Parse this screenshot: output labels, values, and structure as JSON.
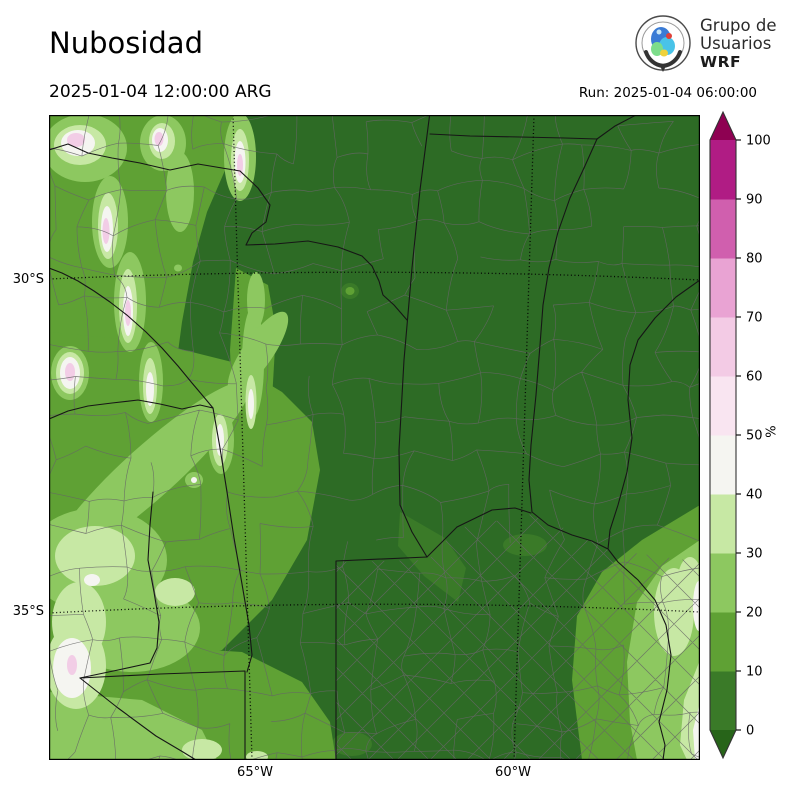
{
  "header": {
    "title": "Nubosidad",
    "valid_time": "2025-01-04 12:00:00 ARG",
    "run_label": "Run: 2025-01-04 06:00:00",
    "logo": {
      "line1": "Grupo de",
      "line2": "Usuarios",
      "line3": "WRF"
    }
  },
  "chart_data": {
    "type": "heatmap",
    "title": "Nubosidad",
    "valid_time": "2025-01-04 12:00:00 ARG",
    "run_time": "2025-01-04 06:00:00",
    "units": "%",
    "x_tick_labels": [
      "65°W",
      "60°W"
    ],
    "y_tick_labels": [
      "30°S",
      "35°S"
    ],
    "colorbar": {
      "label": "%",
      "tick_values": [
        0,
        10,
        20,
        30,
        40,
        50,
        60,
        70,
        80,
        90,
        100
      ],
      "bin_colors": [
        "#3a7a28",
        "#5fa134",
        "#8dc860",
        "#c7e8a4",
        "#f5f5f1",
        "#f9e5f1",
        "#f3cbe5",
        "#e9a3d3",
        "#d05fae",
        "#b01c84"
      ],
      "under_color": "#276419",
      "over_color": "#8e0152",
      "extend": "both",
      "legend_position": "right"
    },
    "map_colors": {
      "base_fill": "#2d6b25",
      "province_border": "#161616",
      "department_border": "#666666",
      "graticule": "#000000"
    }
  }
}
